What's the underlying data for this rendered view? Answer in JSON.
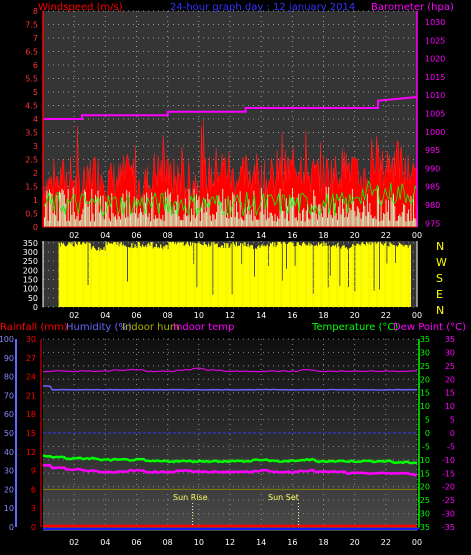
{
  "header": {
    "wind_title": "Windspeed (m/s)",
    "date_title": "24-hour graph day : 12 january 2014",
    "pressure_title": "Barometer (hpa)"
  },
  "bottom_header": {
    "rainfall": "Rainfall (mm)",
    "humidity": "Humidity (%)",
    "indoor_hum": "Indoor hum",
    "indoor_temp": "Indoor temp",
    "temperature": "Temperature (°C)",
    "dew_point": "Dew Point (°C)"
  },
  "direction_labels": [
    "N",
    "W",
    "S",
    "E",
    "N"
  ],
  "sun_labels": {
    "rise": "Sun Rise",
    "set": "Sun Set"
  },
  "colors": {
    "wind": "#ff0000",
    "gust_fill": "#ccffcc",
    "gust_line": "#00ff00",
    "pressure": "#ff00ff",
    "direction": "#ffff00",
    "temperature": "#00ff00",
    "dew_point": "#ff00ff",
    "humidity": "#6666ff",
    "indoor_hum": "#808000",
    "indoor_temp": "#ff00ff",
    "rainfall": "#ff0000",
    "time_axis": "#1a1aff"
  },
  "chart_data": [
    {
      "type": "area",
      "title": "24-hour graph day : 12 january 2014",
      "x_ticks": [
        "02",
        "04",
        "06",
        "08",
        "10",
        "12",
        "14",
        "16",
        "18",
        "20",
        "22",
        "00"
      ],
      "y_left": {
        "label": "Windspeed (m/s)",
        "ticks": [
          "0",
          "0.5",
          "1",
          "1.5",
          "2",
          "2.5",
          "3",
          "3.5",
          "4",
          "4.5",
          "5",
          "5.5",
          "6",
          "6.5",
          "7",
          "7.5",
          "8"
        ],
        "ylim": [
          0,
          8
        ]
      },
      "y_right": {
        "label": "Barometer (hpa)",
        "ticks": [
          "975",
          "980",
          "985",
          "990",
          "995",
          "1000",
          "1005",
          "1010",
          "1015",
          "1020",
          "1025",
          "1030"
        ],
        "ylim": [
          974,
          1033
        ]
      },
      "series": [
        {
          "name": "Windspeed (m/s)",
          "type": "area",
          "values": [
            1.6,
            1.8,
            1.5,
            2.0,
            1.7,
            1.9,
            1.6,
            2.1,
            1.8,
            1.7,
            1.9,
            2.2,
            1.8,
            2.0,
            1.7,
            2.1,
            2.3,
            1.9,
            2.0,
            2.2,
            1.8,
            2.1,
            2.4,
            2.0,
            2.2,
            2.5
          ]
        },
        {
          "name": "Barometer (hpa)",
          "type": "line",
          "x": [
            0,
            2.5,
            2.5,
            8,
            8,
            13,
            13,
            21.5,
            21.5,
            24
          ],
          "values": [
            1003.5,
            1003.5,
            1004.5,
            1004.5,
            1005.5,
            1005.5,
            1006.5,
            1006.5,
            1008.5,
            1009.5
          ]
        }
      ]
    },
    {
      "type": "bar",
      "x_ticks": [
        "02",
        "04",
        "06",
        "08",
        "10",
        "12",
        "14",
        "16",
        "18",
        "20",
        "22",
        "00"
      ],
      "y_left": {
        "ticks": [
          "0",
          "50",
          "100",
          "150",
          "200",
          "250",
          "300",
          "350"
        ],
        "ylim": [
          0,
          360
        ]
      },
      "y_right": {
        "ticks": [
          "N",
          "W",
          "S",
          "E",
          "N"
        ]
      },
      "series": [
        {
          "name": "Wind direction",
          "values": [
            330,
            340,
            350,
            320,
            345,
            335,
            340,
            330,
            350,
            345,
            340,
            335,
            345,
            330,
            340,
            350,
            345,
            340,
            335,
            330,
            345,
            350,
            340,
            335
          ]
        }
      ]
    },
    {
      "type": "line",
      "x_ticks": [
        "02",
        "04",
        "06",
        "08",
        "10",
        "12",
        "14",
        "16",
        "18",
        "20",
        "22",
        "00"
      ],
      "y_left_rain": {
        "label": "Rainfall (mm)",
        "ticks": [
          "0",
          "3",
          "6",
          "9",
          "12",
          "15",
          "18",
          "21",
          "24",
          "27",
          "30"
        ],
        "ylim": [
          0,
          30
        ]
      },
      "y_left_hum": {
        "label": "Humidity (%)",
        "ticks": [
          "0",
          "10",
          "20",
          "30",
          "40",
          "50",
          "60",
          "70",
          "80",
          "90",
          "100"
        ],
        "ylim": [
          0,
          100
        ]
      },
      "y_right_temp": {
        "label": "Temperature (°C)",
        "ticks": [
          "-35",
          "-30",
          "-25",
          "-20",
          "-15",
          "-10",
          "-5",
          "0",
          "5",
          "10",
          "15",
          "20",
          "25",
          "30",
          "35"
        ],
        "ylim": [
          -35,
          35
        ]
      },
      "y_right_dew": {
        "label": "Dew Point (°C)",
        "ticks": [
          "-35",
          "-30",
          "-25",
          "-20",
          "-15",
          "-10",
          "-5",
          "0",
          "5",
          "10",
          "15",
          "20",
          "25",
          "30",
          "35"
        ],
        "ylim": [
          -35,
          35
        ]
      },
      "series": [
        {
          "name": "Humidity (%)",
          "values": [
            75,
            73,
            73,
            73,
            73,
            73,
            73,
            73,
            73,
            73,
            73,
            73,
            73,
            73,
            73,
            73,
            73,
            73,
            73,
            73,
            73,
            73,
            73,
            73,
            73
          ]
        },
        {
          "name": "Indoor temp",
          "values": [
            23,
            23,
            23,
            23,
            23,
            23.5,
            23.5,
            23,
            23,
            23.5,
            24,
            23.5,
            23,
            23,
            23,
            23,
            23,
            23.5,
            23,
            23,
            23,
            23,
            23,
            23,
            23
          ]
        },
        {
          "name": "Temperature (°C)",
          "values": [
            -8.5,
            -9,
            -9.5,
            -9.5,
            -10,
            -10,
            -10,
            -10.5,
            -10.5,
            -10.5,
            -10.5,
            -10.5,
            -10.5,
            -10.5,
            -10,
            -10.5,
            -10.5,
            -10,
            -10.5,
            -10.5,
            -10.5,
            -10.5,
            -10.5,
            -11,
            -11
          ]
        },
        {
          "name": "Dew Point (°C)",
          "values": [
            -12,
            -13,
            -13.5,
            -14,
            -14.5,
            -14.5,
            -14,
            -14.5,
            -14.5,
            -14,
            -14.5,
            -14.5,
            -14.5,
            -14.5,
            -14,
            -14.5,
            -14.5,
            -14,
            -14.5,
            -14.5,
            -15,
            -15,
            -15,
            -15,
            -15.5
          ]
        },
        {
          "name": "Indoor hum",
          "values": [
            20,
            20,
            20,
            20,
            20,
            20,
            20,
            20,
            20,
            20,
            20,
            20,
            20,
            20,
            20,
            20,
            20,
            20,
            20,
            20,
            20,
            20,
            20,
            20,
            20
          ]
        },
        {
          "name": "Rainfall (mm)",
          "values": [
            0,
            0,
            0,
            0,
            0,
            0,
            0,
            0,
            0,
            0,
            0,
            0,
            0,
            0,
            0,
            0,
            0,
            0,
            0,
            0,
            0,
            0,
            0,
            0,
            0
          ]
        }
      ],
      "markers": [
        {
          "label": "Sun Rise",
          "x": 9.6
        },
        {
          "label": "Sun Set",
          "x": 16.4
        }
      ]
    }
  ]
}
